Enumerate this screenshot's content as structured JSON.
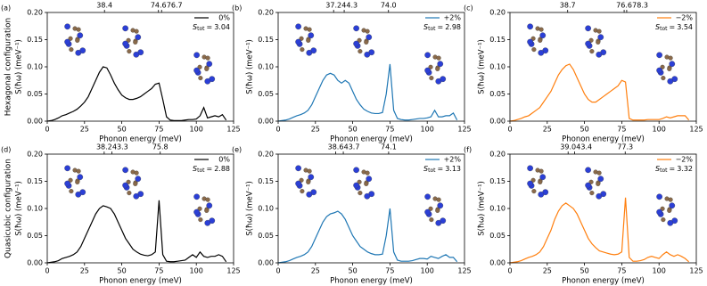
{
  "row_labels": [
    "Hexagonal configuration",
    "Quasicubic configuration"
  ],
  "chart_data": [
    {
      "type": "line",
      "panel": "(a)",
      "xlabel": "Phonon energy (meV)",
      "ylabel": "S(ħω) (meV⁻¹)",
      "xlim": [
        0,
        125
      ],
      "ylim": [
        0,
        0.2
      ],
      "xticks": [
        0,
        25,
        50,
        75,
        100,
        125
      ],
      "yticks": [
        {
          "value": 0,
          "label": "0.00"
        },
        {
          "value": 0.05,
          "label": "0.05"
        },
        {
          "value": 0.1,
          "label": "0.10"
        },
        {
          "value": 0.15,
          "label": "0.15"
        },
        {
          "value": 0.2,
          "label": "0.20"
        }
      ],
      "peaks": [
        38.4,
        74.6,
        76.7
      ],
      "stot_symbol": "S",
      "stot_subscript": "tot",
      "stot_equals": "=",
      "stot": 3.04,
      "x": [
        0,
        2.5,
        5,
        7.5,
        10,
        12.5,
        15,
        17.5,
        20,
        22.5,
        25,
        27.5,
        30,
        32.5,
        35,
        37.5,
        40,
        42.5,
        45,
        47.5,
        50,
        52.5,
        55,
        57.5,
        60,
        62.5,
        65,
        67.5,
        70,
        72.5,
        75,
        77.5,
        80,
        82.5,
        85,
        87.5,
        90,
        92.5,
        95,
        97.5,
        100,
        102.5,
        105,
        107.5,
        110,
        112.5,
        115,
        117.5,
        120
      ],
      "series": [
        {
          "name": "0%",
          "color": "#000000",
          "values": [
            0,
            0.001,
            0.003,
            0.006,
            0.01,
            0.012,
            0.015,
            0.018,
            0.022,
            0.028,
            0.035,
            0.045,
            0.06,
            0.075,
            0.09,
            0.1,
            0.098,
            0.085,
            0.07,
            0.058,
            0.048,
            0.043,
            0.04,
            0.04,
            0.042,
            0.045,
            0.05,
            0.055,
            0.06,
            0.068,
            0.07,
            0.04,
            0.008,
            0.002,
            0.001,
            0.001,
            0.001,
            0.002,
            0.003,
            0.003,
            0.004,
            0.01,
            0.025,
            0.006,
            0.008,
            0.01,
            0.008,
            0.012,
            0.002
          ]
        }
      ]
    },
    {
      "type": "line",
      "panel": "(b)",
      "xlabel": "Phonon energy (meV)",
      "ylabel": "S(ħω) (meV⁻¹)",
      "xlim": [
        0,
        125
      ],
      "ylim": [
        0,
        0.2
      ],
      "xticks": [
        0,
        25,
        50,
        75,
        100,
        125
      ],
      "yticks": [
        {
          "value": 0,
          "label": "0.00"
        },
        {
          "value": 0.05,
          "label": "0.05"
        },
        {
          "value": 0.1,
          "label": "0.10"
        },
        {
          "value": 0.15,
          "label": "0.15"
        },
        {
          "value": 0.2,
          "label": "0.20"
        }
      ],
      "peaks": [
        37.2,
        44.3,
        {
          "value": 74,
          "label": "74.0"
        }
      ],
      "stot_symbol": "S",
      "stot_subscript": "tot",
      "stot_equals": "=",
      "stot": 2.98,
      "x": [
        0,
        2.5,
        5,
        7.5,
        10,
        12.5,
        15,
        17.5,
        20,
        22.5,
        25,
        27.5,
        30,
        32.5,
        35,
        37.5,
        40,
        42.5,
        45,
        47.5,
        50,
        52.5,
        55,
        57.5,
        60,
        62.5,
        65,
        67.5,
        70,
        72.5,
        75,
        77.5,
        80,
        82.5,
        85,
        87.5,
        90,
        92.5,
        95,
        97.5,
        100,
        102.5,
        105,
        107.5,
        110,
        112.5,
        115,
        117.5,
        120
      ],
      "series": [
        {
          "name": "+2%",
          "color": "#1f77b4",
          "values": [
            0,
            0.001,
            0.002,
            0.004,
            0.007,
            0.01,
            0.012,
            0.015,
            0.02,
            0.03,
            0.045,
            0.06,
            0.075,
            0.085,
            0.088,
            0.085,
            0.075,
            0.07,
            0.075,
            0.07,
            0.055,
            0.04,
            0.03,
            0.022,
            0.018,
            0.015,
            0.014,
            0.014,
            0.016,
            0.05,
            0.105,
            0.02,
            0.005,
            0.003,
            0.002,
            0.002,
            0.003,
            0.004,
            0.005,
            0.005,
            0.006,
            0.008,
            0.02,
            0.008,
            0.008,
            0.01,
            0.01,
            0.015,
            0.002
          ]
        }
      ]
    },
    {
      "type": "line",
      "panel": "(c)",
      "xlabel": "Phonon energy (meV)",
      "ylabel": "S(ħω) (meV⁻¹)",
      "xlim": [
        0,
        125
      ],
      "ylim": [
        0,
        0.2
      ],
      "xticks": [
        0,
        25,
        50,
        75,
        100,
        125
      ],
      "yticks": [
        {
          "value": 0,
          "label": "0.00"
        },
        {
          "value": 0.05,
          "label": "0.05"
        },
        {
          "value": 0.1,
          "label": "0.10"
        },
        {
          "value": 0.15,
          "label": "0.15"
        },
        {
          "value": 0.2,
          "label": "0.20"
        }
      ],
      "peaks": [
        38.7,
        76.6,
        78.3
      ],
      "stot_symbol": "S",
      "stot_subscript": "tot",
      "stot_equals": "=",
      "stot": 3.54,
      "x": [
        0,
        2.5,
        5,
        7.5,
        10,
        12.5,
        15,
        17.5,
        20,
        22.5,
        25,
        27.5,
        30,
        32.5,
        35,
        37.5,
        40,
        42.5,
        45,
        47.5,
        50,
        52.5,
        55,
        57.5,
        60,
        62.5,
        65,
        67.5,
        70,
        72.5,
        75,
        77.5,
        80,
        82.5,
        85,
        87.5,
        90,
        92.5,
        95,
        97.5,
        100,
        102.5,
        105,
        107.5,
        110,
        112.5,
        115,
        117.5,
        120
      ],
      "series": [
        {
          "name": "−2%",
          "color": "#ff7f0e",
          "values": [
            0,
            0.001,
            0.003,
            0.005,
            0.008,
            0.01,
            0.015,
            0.02,
            0.025,
            0.035,
            0.045,
            0.055,
            0.07,
            0.085,
            0.095,
            0.102,
            0.105,
            0.095,
            0.08,
            0.065,
            0.05,
            0.04,
            0.035,
            0.035,
            0.04,
            0.045,
            0.05,
            0.055,
            0.06,
            0.065,
            0.075,
            0.072,
            0.005,
            0.002,
            0.002,
            0.002,
            0.002,
            0.003,
            0.003,
            0.003,
            0.003,
            0.005,
            0.008,
            0.006,
            0.008,
            0.01,
            0.01,
            0.01,
            0.002
          ]
        }
      ]
    },
    {
      "type": "line",
      "panel": "(d)",
      "xlabel": "Phonon energy (meV)",
      "ylabel": "S(ħω) (meV⁻¹)",
      "xlim": [
        0,
        125
      ],
      "ylim": [
        0,
        0.2
      ],
      "xticks": [
        0,
        25,
        50,
        75,
        100,
        125
      ],
      "yticks": [
        {
          "value": 0,
          "label": "0.00"
        },
        {
          "value": 0.05,
          "label": "0.05"
        },
        {
          "value": 0.1,
          "label": "0.10"
        },
        {
          "value": 0.15,
          "label": "0.15"
        },
        {
          "value": 0.2,
          "label": "0.20"
        }
      ],
      "peaks": [
        38.2,
        43.3,
        75.8
      ],
      "stot_symbol": "S",
      "stot_subscript": "tot",
      "stot_equals": "=",
      "stot": 2.88,
      "x": [
        0,
        2.5,
        5,
        7.5,
        10,
        12.5,
        15,
        17.5,
        20,
        22.5,
        25,
        27.5,
        30,
        32.5,
        35,
        37.5,
        40,
        42.5,
        45,
        47.5,
        50,
        52.5,
        55,
        57.5,
        60,
        62.5,
        65,
        67.5,
        70,
        72.5,
        75,
        77.5,
        80,
        82.5,
        85,
        87.5,
        90,
        92.5,
        95,
        97.5,
        100,
        102.5,
        105,
        107.5,
        110,
        112.5,
        115,
        117.5,
        120
      ],
      "series": [
        {
          "name": "0%",
          "color": "#000000",
          "values": [
            0,
            0.001,
            0.002,
            0.004,
            0.008,
            0.01,
            0.012,
            0.015,
            0.02,
            0.03,
            0.045,
            0.06,
            0.075,
            0.09,
            0.1,
            0.105,
            0.103,
            0.1,
            0.09,
            0.075,
            0.06,
            0.045,
            0.035,
            0.025,
            0.02,
            0.016,
            0.014,
            0.013,
            0.015,
            0.02,
            0.115,
            0.015,
            0.003,
            0.002,
            0.002,
            0.003,
            0.004,
            0.005,
            0.01,
            0.015,
            0.01,
            0.02,
            0.012,
            0.01,
            0.012,
            0.012,
            0.015,
            0.012,
            0.002
          ]
        }
      ]
    },
    {
      "type": "line",
      "panel": "(e)",
      "xlabel": "Phonon energy (meV)",
      "ylabel": "S(ħω) (meV⁻¹)",
      "xlim": [
        0,
        125
      ],
      "ylim": [
        0,
        0.2
      ],
      "xticks": [
        0,
        25,
        50,
        75,
        100,
        125
      ],
      "yticks": [
        {
          "value": 0,
          "label": "0.00"
        },
        {
          "value": 0.05,
          "label": "0.05"
        },
        {
          "value": 0.1,
          "label": "0.10"
        },
        {
          "value": 0.15,
          "label": "0.15"
        },
        {
          "value": 0.2,
          "label": "0.20"
        }
      ],
      "peaks": [
        38.6,
        43.7,
        74.1
      ],
      "stot_symbol": "S",
      "stot_subscript": "tot",
      "stot_equals": "=",
      "stot": 3.13,
      "x": [
        0,
        2.5,
        5,
        7.5,
        10,
        12.5,
        15,
        17.5,
        20,
        22.5,
        25,
        27.5,
        30,
        32.5,
        35,
        37.5,
        40,
        42.5,
        45,
        47.5,
        50,
        52.5,
        55,
        57.5,
        60,
        62.5,
        65,
        67.5,
        70,
        72.5,
        75,
        77.5,
        80,
        82.5,
        85,
        87.5,
        90,
        92.5,
        95,
        97.5,
        100,
        102.5,
        105,
        107.5,
        110,
        112.5,
        115,
        117.5,
        120
      ],
      "series": [
        {
          "name": "+2%",
          "color": "#1f77b4",
          "values": [
            0,
            0.001,
            0.002,
            0.004,
            0.007,
            0.01,
            0.012,
            0.015,
            0.02,
            0.03,
            0.045,
            0.06,
            0.075,
            0.085,
            0.09,
            0.092,
            0.095,
            0.09,
            0.08,
            0.065,
            0.05,
            0.04,
            0.03,
            0.025,
            0.02,
            0.017,
            0.015,
            0.015,
            0.016,
            0.05,
            0.1,
            0.02,
            0.005,
            0.003,
            0.003,
            0.003,
            0.004,
            0.006,
            0.008,
            0.008,
            0.007,
            0.012,
            0.01,
            0.008,
            0.012,
            0.015,
            0.01,
            0.01,
            0.002
          ]
        }
      ]
    },
    {
      "type": "line",
      "panel": "(f)",
      "xlabel": "Phonon energy (meV)",
      "ylabel": "S(ħω) (meV⁻¹)",
      "xlim": [
        0,
        125
      ],
      "ylim": [
        0,
        0.2
      ],
      "xticks": [
        0,
        25,
        50,
        75,
        100,
        125
      ],
      "yticks": [
        {
          "value": 0,
          "label": "0.00"
        },
        {
          "value": 0.05,
          "label": "0.05"
        },
        {
          "value": 0.1,
          "label": "0.10"
        },
        {
          "value": 0.15,
          "label": "0.15"
        },
        {
          "value": 0.2,
          "label": "0.20"
        }
      ],
      "peaks": [
        {
          "value": 39,
          "label": "39.0"
        },
        43.4,
        77.3
      ],
      "stot_symbol": "S",
      "stot_subscript": "tot",
      "stot_equals": "=",
      "stot": 3.32,
      "x": [
        0,
        2.5,
        5,
        7.5,
        10,
        12.5,
        15,
        17.5,
        20,
        22.5,
        25,
        27.5,
        30,
        32.5,
        35,
        37.5,
        40,
        42.5,
        45,
        47.5,
        50,
        52.5,
        55,
        57.5,
        60,
        62.5,
        65,
        67.5,
        70,
        72.5,
        75,
        77.5,
        80,
        82.5,
        85,
        87.5,
        90,
        92.5,
        95,
        97.5,
        100,
        102.5,
        105,
        107.5,
        110,
        112.5,
        115,
        117.5,
        120
      ],
      "series": [
        {
          "name": "−2%",
          "color": "#ff7f0e",
          "values": [
            0,
            0.001,
            0.002,
            0.004,
            0.007,
            0.01,
            0.012,
            0.015,
            0.02,
            0.03,
            0.045,
            0.06,
            0.08,
            0.095,
            0.105,
            0.11,
            0.105,
            0.1,
            0.09,
            0.075,
            0.06,
            0.045,
            0.035,
            0.028,
            0.022,
            0.02,
            0.018,
            0.016,
            0.015,
            0.016,
            0.02,
            0.12,
            0.01,
            0.003,
            0.003,
            0.004,
            0.006,
            0.01,
            0.012,
            0.01,
            0.008,
            0.015,
            0.02,
            0.015,
            0.012,
            0.015,
            0.012,
            0.008,
            0.002
          ]
        }
      ]
    }
  ]
}
